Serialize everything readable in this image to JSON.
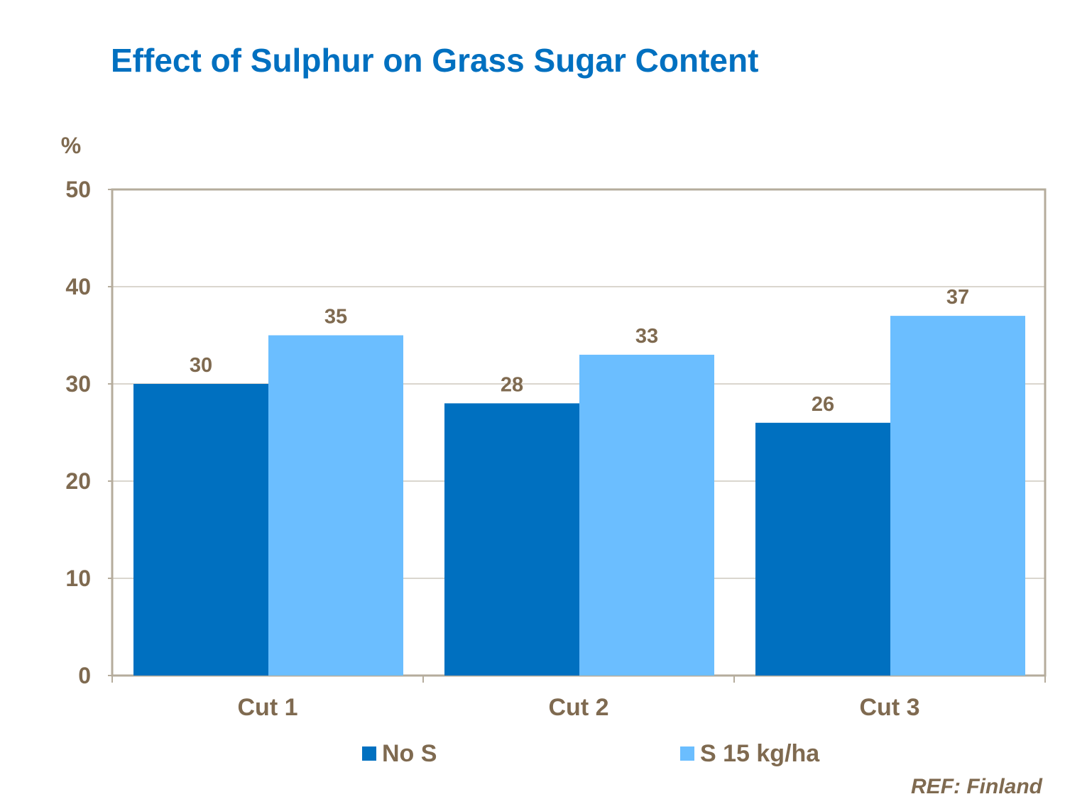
{
  "chart_data": {
    "type": "bar",
    "title": "Effect of Sulphur on Grass Sugar Content",
    "ylabel": "%",
    "xlabel": "",
    "ylim": [
      0,
      50
    ],
    "yticks": [
      0,
      10,
      20,
      30,
      40,
      50
    ],
    "grid": true,
    "legend_position": "bottom",
    "categories": [
      "Cut 1",
      "Cut 2",
      "Cut 3"
    ],
    "series": [
      {
        "name": "No S",
        "values": [
          30,
          28,
          26
        ],
        "color": "#0070C0"
      },
      {
        "name": "S 15 kg/ha",
        "values": [
          35,
          33,
          37
        ],
        "color": "#6BBEFF"
      }
    ],
    "annotation": "REF: Finland"
  }
}
